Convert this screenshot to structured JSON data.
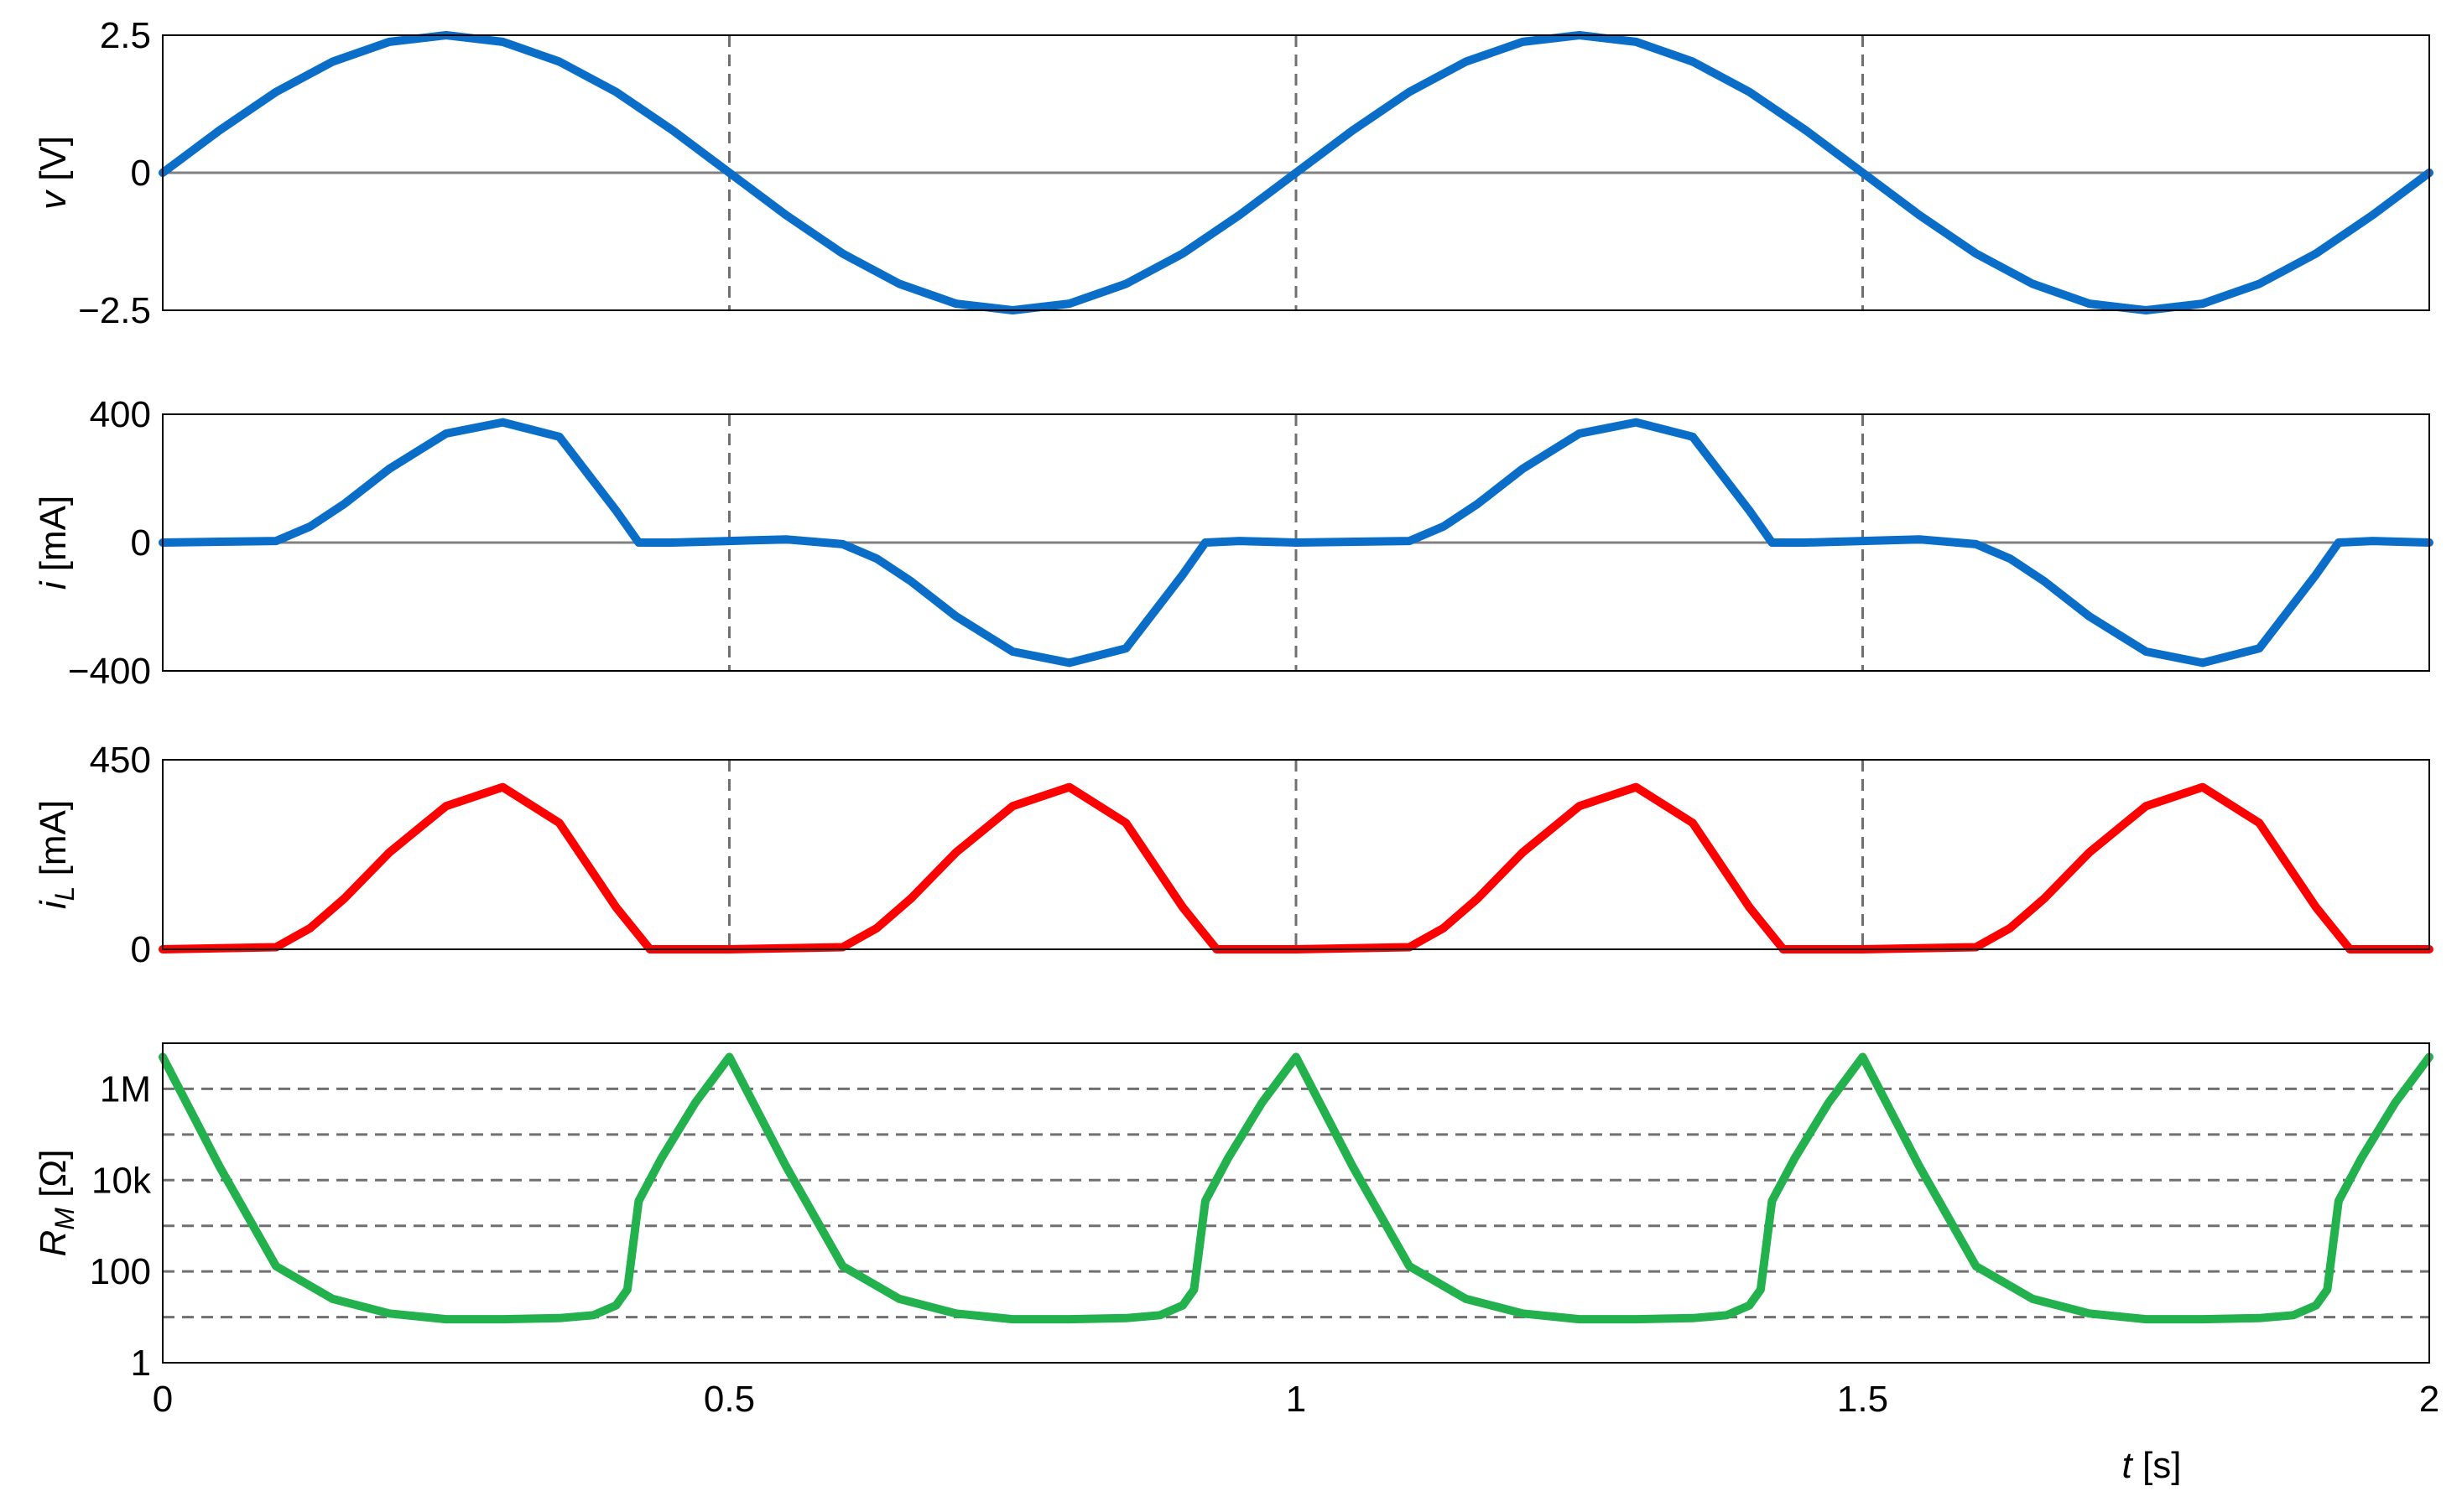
{
  "chart_data": [
    {
      "type": "line",
      "ylabel_main": "v",
      "ylabel_sub": "",
      "ylabel_unit": "[V]",
      "ylim": [
        -2.5,
        2.5
      ],
      "yticks": [
        -2.5,
        0,
        2.5
      ],
      "ytick_labels": [
        "−2.5",
        "0",
        "2.5"
      ],
      "xlim": [
        0,
        2
      ],
      "vgrid_x": [
        0.5,
        1,
        1.5
      ],
      "zero_line": true,
      "color": "#0a6ec8",
      "series": [
        {
          "x": [
            0,
            0.05,
            0.1,
            0.15,
            0.2,
            0.25,
            0.3,
            0.35,
            0.4,
            0.45,
            0.5,
            0.55,
            0.6,
            0.65,
            0.7,
            0.75,
            0.8,
            0.85,
            0.9,
            0.95,
            1.0,
            1.05,
            1.1,
            1.15,
            1.2,
            1.25,
            1.3,
            1.35,
            1.4,
            1.45,
            1.5,
            1.55,
            1.6,
            1.65,
            1.7,
            1.75,
            1.8,
            1.85,
            1.9,
            1.95,
            2.0
          ],
          "y": [
            0,
            0.77,
            1.47,
            2.02,
            2.38,
            2.5,
            2.38,
            2.02,
            1.47,
            0.77,
            0,
            -0.77,
            -1.47,
            -2.02,
            -2.38,
            -2.5,
            -2.38,
            -2.02,
            -1.47,
            -0.77,
            0,
            0.77,
            1.47,
            2.02,
            2.38,
            2.5,
            2.38,
            2.02,
            1.47,
            0.77,
            0,
            -0.77,
            -1.47,
            -2.02,
            -2.38,
            -2.5,
            -2.38,
            -2.02,
            -1.47,
            -0.77,
            0
          ]
        }
      ]
    },
    {
      "type": "line",
      "ylabel_main": "i",
      "ylabel_sub": "",
      "ylabel_unit": "[mA]",
      "ylim": [
        -400,
        400
      ],
      "yticks": [
        -400,
        0,
        400
      ],
      "ytick_labels": [
        "−400",
        "0",
        "400"
      ],
      "xlim": [
        0,
        2
      ],
      "vgrid_x": [
        0.5,
        1,
        1.5
      ],
      "zero_line": true,
      "color": "#0a6ec8",
      "series": [
        {
          "x": [
            0,
            0.1,
            0.13,
            0.16,
            0.2,
            0.25,
            0.3,
            0.35,
            0.4,
            0.42,
            0.45,
            0.5,
            0.55,
            0.6,
            0.63,
            0.66,
            0.7,
            0.75,
            0.8,
            0.85,
            0.9,
            0.92,
            0.95,
            1.0,
            1.1,
            1.13,
            1.16,
            1.2,
            1.25,
            1.3,
            1.35,
            1.4,
            1.42,
            1.45,
            1.5,
            1.55,
            1.6,
            1.63,
            1.66,
            1.7,
            1.75,
            1.8,
            1.85,
            1.9,
            1.92,
            1.95,
            2.0
          ],
          "y": [
            0,
            5,
            50,
            120,
            230,
            340,
            375,
            330,
            100,
            0,
            0,
            5,
            10,
            -5,
            -50,
            -120,
            -230,
            -340,
            -375,
            -330,
            -100,
            0,
            5,
            0,
            5,
            50,
            120,
            230,
            340,
            375,
            330,
            100,
            0,
            0,
            5,
            10,
            -5,
            -50,
            -120,
            -230,
            -340,
            -375,
            -330,
            -100,
            0,
            5,
            0
          ]
        }
      ]
    },
    {
      "type": "line",
      "ylabel_main": "i",
      "ylabel_sub": "L",
      "ylabel_unit": "[mA]",
      "ylim": [
        0,
        450
      ],
      "yticks": [
        0,
        450
      ],
      "ytick_labels": [
        "0",
        "450"
      ],
      "xlim": [
        0,
        2
      ],
      "vgrid_x": [
        0.5,
        1,
        1.5
      ],
      "zero_line": false,
      "color": "#ff0000",
      "series": [
        {
          "x": [
            0,
            0.1,
            0.13,
            0.16,
            0.2,
            0.25,
            0.3,
            0.35,
            0.4,
            0.43,
            0.5,
            0.6,
            0.63,
            0.66,
            0.7,
            0.75,
            0.8,
            0.85,
            0.9,
            0.93,
            1.0,
            1.1,
            1.13,
            1.16,
            1.2,
            1.25,
            1.3,
            1.35,
            1.4,
            1.43,
            1.5,
            1.6,
            1.63,
            1.66,
            1.7,
            1.75,
            1.8,
            1.85,
            1.9,
            1.93,
            2.0
          ],
          "y": [
            0,
            5,
            50,
            120,
            230,
            340,
            385,
            300,
            100,
            0,
            0,
            5,
            50,
            120,
            230,
            340,
            385,
            300,
            100,
            0,
            0,
            5,
            50,
            120,
            230,
            340,
            385,
            300,
            100,
            0,
            0,
            5,
            50,
            120,
            230,
            340,
            385,
            300,
            100,
            0,
            0
          ]
        }
      ]
    },
    {
      "type": "line",
      "ylabel_main": "R",
      "ylabel_sub": "M",
      "ylabel_unit": "[Ω]",
      "yscale": "log",
      "ylim": [
        1,
        10000000
      ],
      "yticks": [
        1,
        100,
        10000,
        1000000
      ],
      "ytick_labels": [
        "1",
        "100",
        "10k",
        "1M"
      ],
      "hgrid_y": [
        10,
        100,
        1000,
        10000,
        100000,
        1000000
      ],
      "xlim": [
        0,
        2
      ],
      "xticks": [
        0,
        0.5,
        1,
        1.5,
        2
      ],
      "xtick_labels": [
        "0",
        "0.5",
        "1",
        "1.5",
        "2"
      ],
      "xlabel_main": "t",
      "xlabel_unit": "[s]",
      "color": "#22b14c",
      "series": [
        {
          "x": [
            0,
            0.05,
            0.1,
            0.15,
            0.2,
            0.25,
            0.3,
            0.35,
            0.38,
            0.4,
            0.41,
            0.42,
            0.44,
            0.47,
            0.5,
            0.55,
            0.6,
            0.65,
            0.7,
            0.75,
            0.8,
            0.85,
            0.88,
            0.9,
            0.91,
            0.92,
            0.94,
            0.97,
            1.0,
            1.05,
            1.1,
            1.15,
            1.2,
            1.25,
            1.3,
            1.35,
            1.38,
            1.4,
            1.41,
            1.42,
            1.44,
            1.47,
            1.5,
            1.55,
            1.6,
            1.65,
            1.7,
            1.75,
            1.8,
            1.85,
            1.88,
            1.9,
            1.91,
            1.92,
            1.94,
            1.97,
            2.0
          ],
          "y": [
            5000000,
            20000,
            130,
            25,
            12,
            9,
            9,
            9.5,
            11,
            18,
            40,
            3500,
            30000,
            500000,
            5000000,
            20000,
            130,
            25,
            12,
            9,
            9,
            9.5,
            11,
            18,
            40,
            3500,
            30000,
            500000,
            5000000,
            20000,
            130,
            25,
            12,
            9,
            9,
            9.5,
            11,
            18,
            40,
            3500,
            30000,
            500000,
            5000000,
            20000,
            130,
            25,
            12,
            9,
            9,
            9.5,
            11,
            18,
            40,
            3500,
            30000,
            500000,
            5000000
          ]
        }
      ]
    }
  ]
}
